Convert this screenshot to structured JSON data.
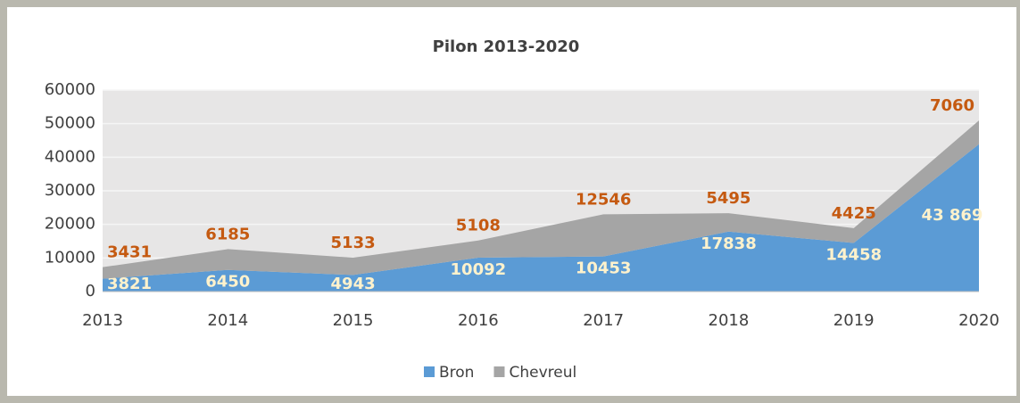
{
  "chart_data": {
    "type": "stacked_area",
    "title": "Pilon 2013-2020",
    "categories": [
      "2013",
      "2014",
      "2015",
      "2016",
      "2017",
      "2018",
      "2019",
      "2020"
    ],
    "series": [
      {
        "name": "Bron",
        "color": "#5b9bd5",
        "values": [
          3821,
          6450,
          4943,
          10092,
          10453,
          17838,
          14458,
          43869
        ],
        "value_labels": [
          "3821",
          "6450",
          "4943",
          "10092",
          "10453",
          "17838",
          "14458",
          "43 869"
        ]
      },
      {
        "name": "Chevreul",
        "color": "#a5a5a5",
        "values": [
          3431,
          6185,
          5133,
          5108,
          12546,
          5495,
          4425,
          7060
        ]
      }
    ],
    "ylim": [
      0,
      60000
    ],
    "yticks": [
      0,
      10000,
      20000,
      30000,
      40000,
      50000,
      60000
    ],
    "grid": true,
    "legend": "bottom"
  }
}
